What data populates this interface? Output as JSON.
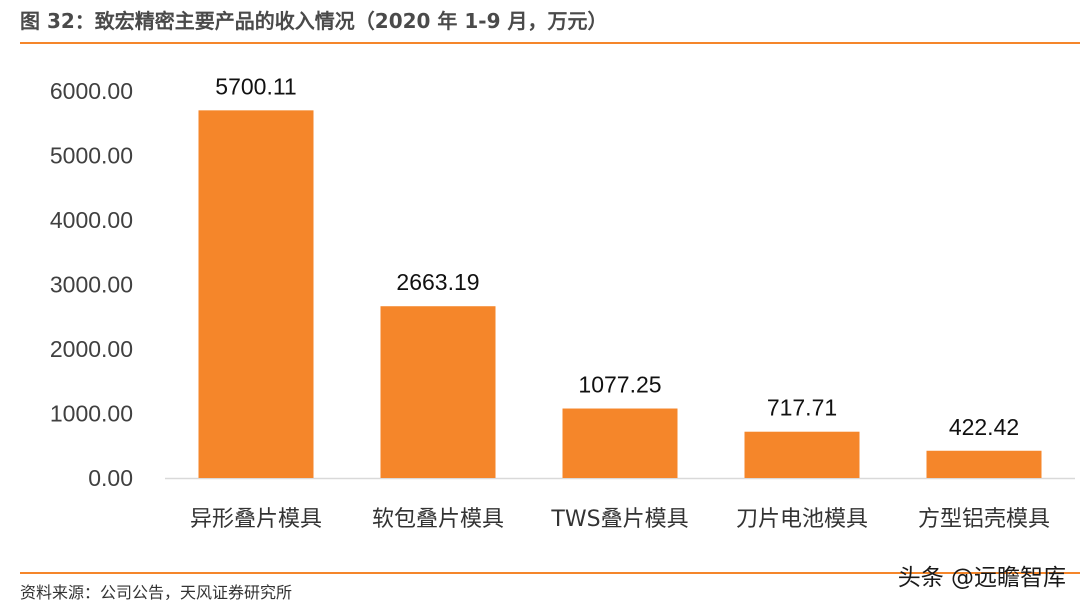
{
  "header": {
    "title": "图 32：致宏精密主要产品的收入情况（2020 年 1-9 月，万元）"
  },
  "chart_data": {
    "type": "bar",
    "categories": [
      "异形叠片模具",
      "软包叠片模具",
      "TWS叠片模具",
      "刀片电池模具",
      "方型铝壳模具"
    ],
    "values": [
      5700.11,
      2663.19,
      1077.25,
      717.71,
      422.42
    ],
    "data_labels": [
      "5700.11",
      "2663.19",
      "1077.25",
      "717.71",
      "422.42"
    ],
    "yticks": [
      "0.00",
      "1000.00",
      "2000.00",
      "3000.00",
      "4000.00",
      "5000.00",
      "6000.00"
    ],
    "ylim": [
      0,
      6000
    ],
    "bar_color": "#f5862a",
    "grid": false,
    "legend": "none"
  },
  "footer": {
    "source": "资料来源：公司公告，天风证券研究所",
    "watermark": "头条 @远瞻智库"
  }
}
